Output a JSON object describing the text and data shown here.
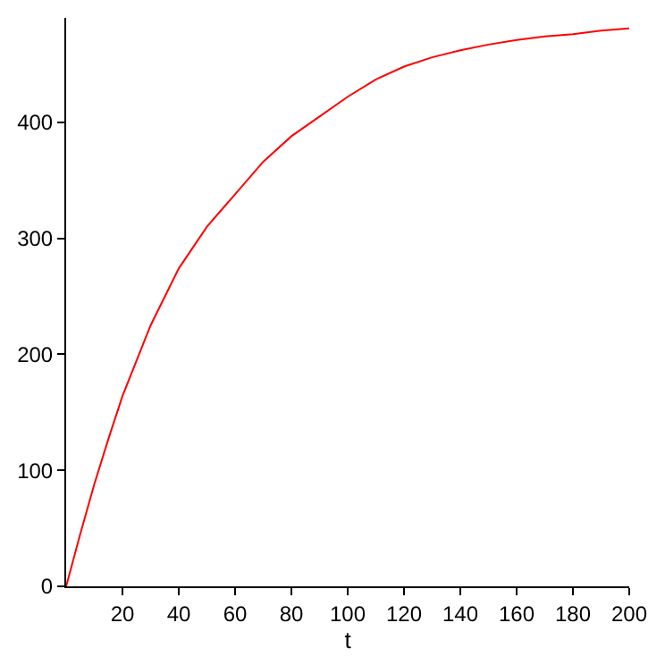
{
  "chart_data": {
    "type": "line",
    "xlabel": "t",
    "x": [
      0,
      5,
      10,
      15,
      20,
      30,
      40,
      50,
      60,
      70,
      80,
      90,
      100,
      110,
      120,
      130,
      140,
      150,
      160,
      170,
      180,
      190,
      200
    ],
    "series": [
      {
        "color": "#ff0000",
        "values": [
          0,
          45,
          88,
          127,
          164,
          225,
          274,
          310,
          338,
          366,
          388,
          405,
          422,
          437,
          448,
          456,
          462,
          467,
          471,
          474,
          476,
          479,
          481
        ]
      }
    ],
    "xlim": [
      0,
      200
    ],
    "ylim": [
      0,
      490
    ],
    "xticks": [
      20,
      40,
      60,
      80,
      100,
      120,
      140,
      160,
      180,
      200
    ],
    "yticks": [
      0,
      100,
      200,
      300,
      400
    ],
    "legend": false
  }
}
